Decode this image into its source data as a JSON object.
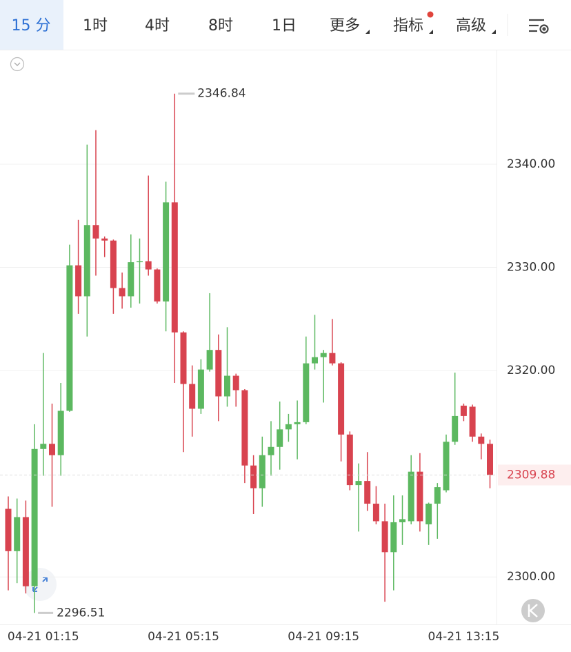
{
  "tabs": [
    "15 分",
    "1时",
    "4时",
    "8时",
    "1日",
    "更多",
    "指标",
    "高级"
  ],
  "chart_data": {
    "type": "candlestick",
    "x": [
      null,
      null,
      null,
      null,
      "04-21 01:15",
      null,
      null,
      null,
      null,
      null,
      null,
      null,
      null,
      null,
      null,
      null,
      null,
      null,
      null,
      null,
      "04-21 05:15",
      null,
      null,
      null,
      null,
      null,
      null,
      null,
      null,
      null,
      null,
      null,
      null,
      null,
      null,
      null,
      "04-21 09:15",
      null,
      null,
      null,
      null,
      null,
      null,
      null,
      null,
      null,
      null,
      null,
      null,
      null,
      null,
      null,
      "04-21 13:15",
      null,
      null,
      null
    ],
    "open": [
      2306.6,
      2302.5,
      2305.8,
      2299.1,
      2312.4,
      2312.9,
      2311.8,
      2316.1,
      2330.2,
      2327.2,
      2334.1,
      2332.8,
      2332.6,
      2328.0,
      2327.2,
      2330.5,
      2330.6,
      2329.8,
      2326.7,
      2336.3,
      2323.7,
      2318.7,
      2316.3,
      2320.1,
      2322.0,
      2317.5,
      2319.5,
      2318.1,
      2310.8,
      2308.6,
      2311.8,
      2312.6,
      2314.3,
      2314.8,
      2315.0,
      2320.7,
      2321.3,
      2321.7,
      2320.7,
      2313.8,
      2308.9,
      2309.3,
      2307.1,
      2305.4,
      2302.4,
      2305.3,
      2305.4,
      2310.2,
      2305.1,
      2307.1,
      2308.4,
      2313.1,
      2316.6,
      2316.5,
      2313.6,
      2312.9
    ],
    "high": [
      2307.8,
      2307.6,
      2307.4,
      2314.8,
      2321.7,
      2316.8,
      2318.8,
      2332.2,
      2334.6,
      2341.9,
      2343.3,
      2333.0,
      2332.7,
      2329.5,
      2333.2,
      2332.8,
      2338.9,
      2329.9,
      2338.3,
      2346.84,
      2323.8,
      2320.5,
      2321.1,
      2327.5,
      2323.5,
      2324.2,
      2319.7,
      2318.2,
      2311.8,
      2313.6,
      2315.1,
      2317.0,
      2315.8,
      2317.1,
      2323.3,
      2325.4,
      2322.0,
      2325.0,
      2320.8,
      2314.1,
      2311.0,
      2312.1,
      2308.8,
      2307.1,
      2307.9,
      2307.9,
      2311.8,
      2312.0,
      2307.2,
      2309.1,
      2313.8,
      2319.8,
      2316.8,
      2316.7,
      2313.9,
      2313.3
    ],
    "low": [
      2298.7,
      2299.4,
      2298.4,
      2296.51,
      2309.8,
      2306.8,
      2309.8,
      2316.0,
      2325.5,
      2323.3,
      2329.2,
      2331.0,
      2325.5,
      2326.0,
      2326.1,
      2326.5,
      2329.2,
      2326.5,
      2323.8,
      2318.8,
      2312.1,
      2313.6,
      2315.8,
      2319.9,
      2315.1,
      2316.5,
      2316.5,
      2309.1,
      2306.1,
      2306.8,
      2309.8,
      2310.4,
      2313.1,
      2311.4,
      2314.8,
      2320.1,
      2316.9,
      2320.5,
      2311.2,
      2308.4,
      2304.4,
      2306.4,
      2305.1,
      2297.6,
      2298.7,
      2303.1,
      2305.1,
      2304.4,
      2303.1,
      2303.7,
      2308.2,
      2312.8,
      2315.1,
      2313.1,
      2311.4,
      2308.6
    ],
    "close": [
      2302.5,
      2305.8,
      2299.1,
      2312.4,
      2312.9,
      2311.8,
      2316.1,
      2330.2,
      2327.2,
      2334.1,
      2332.8,
      2332.6,
      2328.0,
      2327.2,
      2330.5,
      2330.6,
      2329.8,
      2326.7,
      2336.3,
      2323.7,
      2318.7,
      2316.3,
      2320.1,
      2322.0,
      2317.5,
      2319.5,
      2318.1,
      2310.8,
      2308.6,
      2311.8,
      2312.6,
      2314.3,
      2314.8,
      2315.0,
      2320.7,
      2321.3,
      2321.7,
      2320.7,
      2313.8,
      2308.9,
      2309.3,
      2307.1,
      2305.4,
      2302.4,
      2305.3,
      2305.6,
      2310.2,
      2305.4,
      2307.1,
      2308.7,
      2313.1,
      2315.6,
      2315.6,
      2313.6,
      2312.9,
      2309.88
    ],
    "up_color": "#5cb860",
    "down_color": "#d8434f",
    "ylim": [
      2295.4,
      2351.1
    ],
    "yticks": [
      {
        "value": 2300,
        "label": "2300.00"
      },
      {
        "value": 2320,
        "label": "2320.00"
      },
      {
        "value": 2330,
        "label": "2330.00"
      },
      {
        "value": 2340,
        "label": "2340.00"
      }
    ],
    "grid": true
  }
}
